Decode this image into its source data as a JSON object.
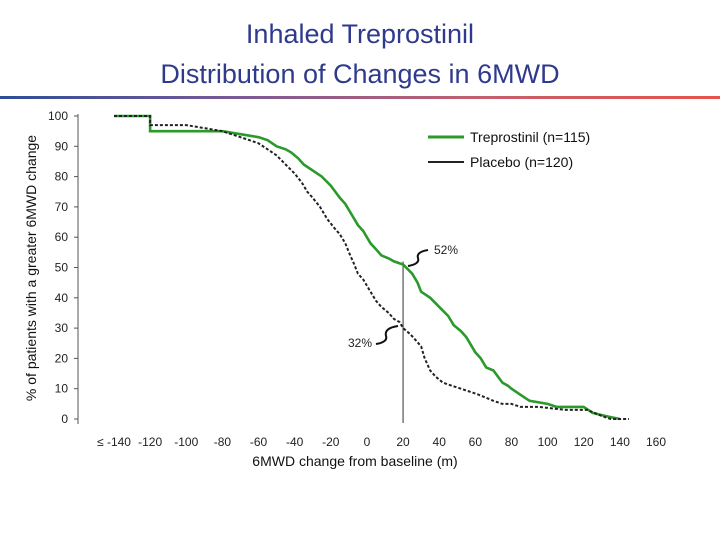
{
  "header": {
    "title_line1": "Inhaled Treprostinil",
    "title_line2": "Distribution of Changes in 6MWD"
  },
  "chart_data": {
    "type": "line",
    "title": "Inhaled Treprostinil Distribution of Changes in 6MWD",
    "xlabel": "6MWD change from baseline (m)",
    "ylabel": "% of patients with a greater 6MWD change",
    "xlim": [
      -140,
      160
    ],
    "ylim": [
      0,
      100
    ],
    "x_ticks": [
      "≤ -140",
      "-120",
      "-100",
      "-80",
      "-60",
      "-40",
      "-20",
      "0",
      "20",
      "40",
      "60",
      "80",
      "100",
      "120",
      "140",
      "160"
    ],
    "y_ticks": [
      "0",
      "10",
      "20",
      "30",
      "40",
      "50",
      "60",
      "70",
      "80",
      "90",
      "100"
    ],
    "reference_line_x": 20,
    "series": [
      {
        "name": "Treprostinil (n=115)",
        "color": "#2a9a2a",
        "style": "solid",
        "points": [
          [
            -140,
            100
          ],
          [
            -120,
            100
          ],
          [
            -120,
            95
          ],
          [
            -100,
            95
          ],
          [
            -80,
            95
          ],
          [
            -70,
            94
          ],
          [
            -60,
            93
          ],
          [
            -55,
            92
          ],
          [
            -50,
            90
          ],
          [
            -45,
            89
          ],
          [
            -42,
            88
          ],
          [
            -38,
            86
          ],
          [
            -35,
            84
          ],
          [
            -30,
            82
          ],
          [
            -25,
            80
          ],
          [
            -20,
            77
          ],
          [
            -15,
            73
          ],
          [
            -12,
            71
          ],
          [
            -8,
            67
          ],
          [
            -5,
            64
          ],
          [
            -2,
            62
          ],
          [
            2,
            58
          ],
          [
            5,
            56
          ],
          [
            8,
            54
          ],
          [
            12,
            53
          ],
          [
            15,
            52
          ],
          [
            20,
            51
          ],
          [
            25,
            48
          ],
          [
            28,
            45
          ],
          [
            30,
            42
          ],
          [
            35,
            40
          ],
          [
            40,
            37
          ],
          [
            45,
            34
          ],
          [
            48,
            31
          ],
          [
            52,
            29
          ],
          [
            55,
            27
          ],
          [
            60,
            22
          ],
          [
            63,
            20
          ],
          [
            66,
            17
          ],
          [
            70,
            16
          ],
          [
            75,
            12
          ],
          [
            78,
            11
          ],
          [
            80,
            10
          ],
          [
            85,
            8
          ],
          [
            90,
            6
          ],
          [
            100,
            5
          ],
          [
            105,
            4
          ],
          [
            120,
            4
          ],
          [
            125,
            2
          ],
          [
            132,
            1
          ],
          [
            140,
            0
          ]
        ]
      },
      {
        "name": "Placebo (n=120)",
        "color": "#222222",
        "style": "dashed",
        "points": [
          [
            -140,
            100
          ],
          [
            -120,
            100
          ],
          [
            -120,
            97
          ],
          [
            -100,
            97
          ],
          [
            -90,
            96
          ],
          [
            -80,
            95
          ],
          [
            -75,
            94
          ],
          [
            -70,
            93
          ],
          [
            -65,
            92
          ],
          [
            -60,
            91
          ],
          [
            -55,
            89
          ],
          [
            -50,
            87
          ],
          [
            -45,
            84
          ],
          [
            -40,
            81
          ],
          [
            -36,
            78
          ],
          [
            -33,
            75
          ],
          [
            -30,
            73
          ],
          [
            -26,
            70
          ],
          [
            -22,
            66
          ],
          [
            -18,
            63
          ],
          [
            -15,
            61
          ],
          [
            -12,
            58
          ],
          [
            -10,
            55
          ],
          [
            -7,
            51
          ],
          [
            -5,
            48
          ],
          [
            -2,
            46
          ],
          [
            2,
            42
          ],
          [
            5,
            39
          ],
          [
            8,
            37
          ],
          [
            12,
            35
          ],
          [
            15,
            33
          ],
          [
            18,
            32
          ],
          [
            20,
            30
          ],
          [
            24,
            28
          ],
          [
            27,
            26
          ],
          [
            30,
            24
          ],
          [
            32,
            20
          ],
          [
            35,
            16
          ],
          [
            38,
            14
          ],
          [
            42,
            12
          ],
          [
            47,
            11
          ],
          [
            52,
            10
          ],
          [
            57,
            9
          ],
          [
            62,
            8
          ],
          [
            66,
            7
          ],
          [
            70,
            6
          ],
          [
            75,
            5
          ],
          [
            80,
            5
          ],
          [
            85,
            4
          ],
          [
            95,
            4
          ],
          [
            110,
            3
          ],
          [
            122,
            3
          ],
          [
            130,
            1
          ],
          [
            135,
            0
          ],
          [
            145,
            0
          ]
        ]
      }
    ],
    "annotations": [
      "52%",
      "32%"
    ],
    "legend": "top-right"
  }
}
